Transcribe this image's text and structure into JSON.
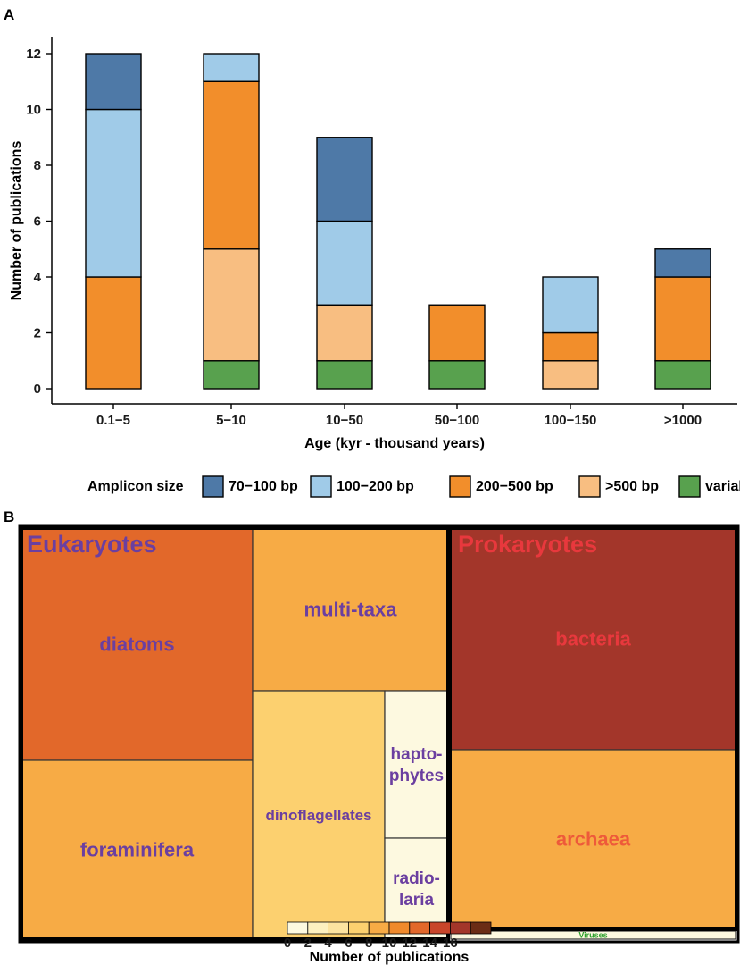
{
  "chart_data": [
    {
      "panel": "A",
      "type": "bar",
      "stacked": true,
      "xlabel": "Age (kyr - thousand years)",
      "ylabel": "Number of publications",
      "ylim": [
        0,
        12.6
      ],
      "yticks": [
        0,
        2,
        4,
        6,
        8,
        10,
        12
      ],
      "grid": false,
      "legend_position": "bottom",
      "legend_title": "Amplicon size",
      "categories": [
        "0.1−5",
        "5−10",
        "10−50",
        "50−100",
        "100−150",
        ">1000"
      ],
      "series": [
        {
          "name": "variable",
          "color": "#58a14e",
          "values": [
            0,
            1,
            1,
            1,
            0,
            1
          ]
        },
        {
          "name": ">500 bp",
          "color": "#f8be81",
          "values": [
            0,
            4,
            2,
            0,
            1,
            0
          ]
        },
        {
          "name": "200−500 bp",
          "color": "#f28e2b",
          "values": [
            4,
            6,
            0,
            2,
            1,
            3
          ]
        },
        {
          "name": "100−200 bp",
          "color": "#a0cbe8",
          "values": [
            6,
            1,
            3,
            0,
            2,
            0
          ]
        },
        {
          "name": "70−100 bp",
          "color": "#4e79a7",
          "values": [
            2,
            0,
            3,
            0,
            0,
            1
          ]
        }
      ],
      "legend_order": [
        "70−100 bp",
        "100−200 bp",
        "200−500 bp",
        ">500 bp",
        "variable"
      ]
    },
    {
      "panel": "B",
      "type": "treemap",
      "groups": [
        {
          "name": "Eukaryotes",
          "label_color": "#6b3fa0",
          "items": [
            {
              "name": "diatoms",
              "value": 12
            },
            {
              "name": "foraminifera",
              "value": 8
            },
            {
              "name": "multi-taxa",
              "value": 8
            },
            {
              "name": "dinoflagellates",
              "value": 6
            },
            {
              "name": "hapto-\nphytes",
              "value": 1
            },
            {
              "name": "radio-\nlaria",
              "value": 1
            }
          ]
        },
        {
          "name": "Prokaryotes",
          "label_color": "#e8383d",
          "items": [
            {
              "name": "bacteria",
              "value": 17
            },
            {
              "name": "archaea",
              "value": 8
            },
            {
              "name": "Viruses",
              "value": 1
            }
          ]
        }
      ],
      "color_scale": {
        "title": "Number of publications",
        "ticks": [
          0,
          2,
          4,
          6,
          8,
          10,
          12,
          14,
          16
        ],
        "colors": [
          "#fdf9e0",
          "#fdf0c0",
          "#fce3a0",
          "#fcd06f",
          "#f7ab45",
          "#f08a2b",
          "#e2682a",
          "#c8452a",
          "#a3362a",
          "#6b2c15"
        ]
      }
    }
  ]
}
